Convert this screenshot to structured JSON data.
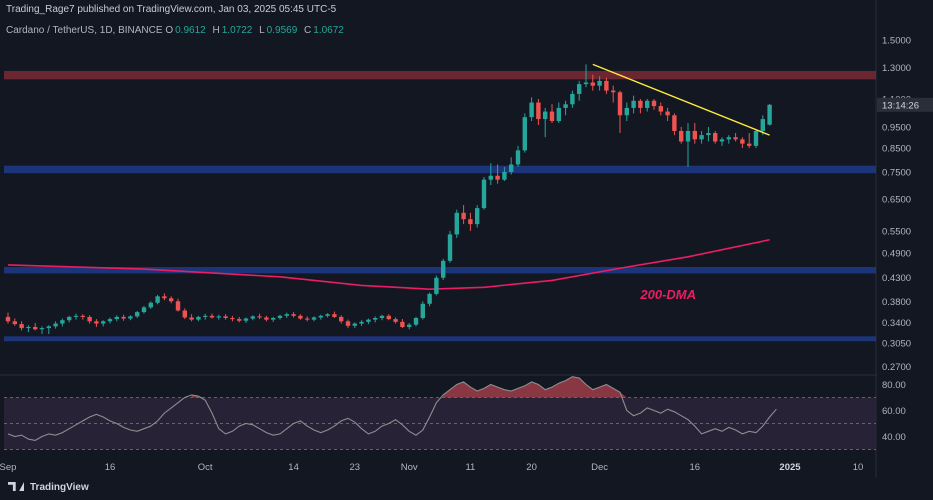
{
  "header": {
    "published_by": "Trading_Rage7 published on TradingView.com, Jan 03, 2025 05:45 UTC-5",
    "symbol": "Cardano / TetherUS, 1D, BINANCE",
    "ohlc": [
      {
        "key": "O",
        "value": "0.9612"
      },
      {
        "key": "H",
        "value": "1.0722"
      },
      {
        "key": "L",
        "value": "0.9569"
      },
      {
        "key": "C",
        "value": "1.0672"
      }
    ]
  },
  "footer": {
    "brand": "TradingView"
  },
  "colors": {
    "background": "#131722",
    "up": "#26a69a",
    "down": "#ef5350",
    "ma": "#e91e63",
    "trendline": "#ffeb3b",
    "resistance_zone": "#7a2a35",
    "support_zone": "#1e3a8a",
    "rsi_line": "#8e8e8e",
    "rsi_fill_over": "#b2434e",
    "rsi_band": "#2a2438"
  },
  "chart_data": [
    {
      "type": "candlestick",
      "title": "Cardano / TetherUS, 1D, BINANCE",
      "scale": "log",
      "y_ticks": [
        "1.5000",
        "1.3000",
        "1.1000",
        "0.9500",
        "0.8500",
        "0.7500",
        "0.6500",
        "0.5500",
        "0.4900",
        "0.4300",
        "0.3800",
        "0.3400",
        "0.3050",
        "0.2700"
      ],
      "last_price_label": "13:14:26",
      "x_ticks": [
        "Sep",
        "16",
        "Oct",
        "14",
        "23",
        "Nov",
        "11",
        "20",
        "Dec",
        "16",
        "2025",
        "10"
      ],
      "candles": [
        [
          0.35,
          0.358,
          0.338,
          0.342
        ],
        [
          0.342,
          0.347,
          0.334,
          0.337
        ],
        [
          0.337,
          0.342,
          0.326,
          0.33
        ],
        [
          0.33,
          0.335,
          0.323,
          0.332
        ],
        [
          0.332,
          0.339,
          0.326,
          0.328
        ],
        [
          0.328,
          0.333,
          0.32,
          0.33
        ],
        [
          0.33,
          0.335,
          0.32,
          0.333
        ],
        [
          0.333,
          0.342,
          0.329,
          0.338
        ],
        [
          0.338,
          0.347,
          0.333,
          0.344
        ],
        [
          0.344,
          0.352,
          0.34,
          0.35
        ],
        [
          0.35,
          0.356,
          0.345,
          0.352
        ],
        [
          0.352,
          0.355,
          0.345,
          0.35
        ],
        [
          0.35,
          0.353,
          0.338,
          0.342
        ],
        [
          0.342,
          0.346,
          0.332,
          0.338
        ],
        [
          0.338,
          0.344,
          0.333,
          0.342
        ],
        [
          0.342,
          0.349,
          0.338,
          0.346
        ],
        [
          0.346,
          0.353,
          0.342,
          0.35
        ],
        [
          0.35,
          0.354,
          0.343,
          0.347
        ],
        [
          0.347,
          0.353,
          0.344,
          0.351
        ],
        [
          0.351,
          0.361,
          0.348,
          0.359
        ],
        [
          0.359,
          0.371,
          0.356,
          0.368
        ],
        [
          0.368,
          0.38,
          0.365,
          0.377
        ],
        [
          0.377,
          0.393,
          0.374,
          0.39
        ],
        [
          0.39,
          0.396,
          0.382,
          0.386
        ],
        [
          0.386,
          0.39,
          0.376,
          0.38
        ],
        [
          0.38,
          0.385,
          0.36,
          0.362
        ],
        [
          0.362,
          0.366,
          0.346,
          0.349
        ],
        [
          0.349,
          0.355,
          0.342,
          0.345
        ],
        [
          0.345,
          0.352,
          0.342,
          0.35
        ],
        [
          0.35,
          0.356,
          0.345,
          0.352
        ],
        [
          0.352,
          0.356,
          0.347,
          0.349
        ],
        [
          0.349,
          0.354,
          0.345,
          0.351
        ],
        [
          0.351,
          0.355,
          0.345,
          0.348
        ],
        [
          0.348,
          0.352,
          0.342,
          0.346
        ],
        [
          0.346,
          0.35,
          0.34,
          0.343
        ],
        [
          0.343,
          0.349,
          0.339,
          0.347
        ],
        [
          0.347,
          0.353,
          0.344,
          0.351
        ],
        [
          0.351,
          0.356,
          0.346,
          0.349
        ],
        [
          0.349,
          0.352,
          0.342,
          0.345
        ],
        [
          0.345,
          0.35,
          0.341,
          0.348
        ],
        [
          0.348,
          0.354,
          0.345,
          0.352
        ],
        [
          0.352,
          0.358,
          0.348,
          0.355
        ],
        [
          0.355,
          0.359,
          0.349,
          0.352
        ],
        [
          0.352,
          0.355,
          0.345,
          0.347
        ],
        [
          0.347,
          0.351,
          0.342,
          0.345
        ],
        [
          0.345,
          0.351,
          0.342,
          0.349
        ],
        [
          0.349,
          0.354,
          0.345,
          0.352
        ],
        [
          0.352,
          0.357,
          0.349,
          0.355
        ],
        [
          0.355,
          0.36,
          0.348,
          0.35
        ],
        [
          0.35,
          0.353,
          0.338,
          0.342
        ],
        [
          0.342,
          0.345,
          0.33,
          0.334
        ],
        [
          0.334,
          0.34,
          0.33,
          0.338
        ],
        [
          0.338,
          0.344,
          0.334,
          0.341
        ],
        [
          0.341,
          0.347,
          0.337,
          0.345
        ],
        [
          0.345,
          0.351,
          0.34,
          0.348
        ],
        [
          0.348,
          0.354,
          0.344,
          0.352
        ],
        [
          0.352,
          0.355,
          0.344,
          0.346
        ],
        [
          0.346,
          0.349,
          0.338,
          0.341
        ],
        [
          0.341,
          0.346,
          0.33,
          0.332
        ],
        [
          0.332,
          0.339,
          0.328,
          0.336
        ],
        [
          0.336,
          0.35,
          0.333,
          0.348
        ],
        [
          0.348,
          0.38,
          0.345,
          0.375
        ],
        [
          0.375,
          0.398,
          0.37,
          0.395
        ],
        [
          0.395,
          0.435,
          0.392,
          0.43
        ],
        [
          0.43,
          0.475,
          0.425,
          0.47
        ],
        [
          0.47,
          0.55,
          0.465,
          0.54
        ],
        [
          0.54,
          0.615,
          0.53,
          0.605
        ],
        [
          0.605,
          0.63,
          0.57,
          0.585
        ],
        [
          0.585,
          0.605,
          0.55,
          0.57
        ],
        [
          0.57,
          0.63,
          0.56,
          0.62
        ],
        [
          0.62,
          0.73,
          0.615,
          0.72
        ],
        [
          0.72,
          0.785,
          0.7,
          0.735
        ],
        [
          0.735,
          0.78,
          0.705,
          0.72
        ],
        [
          0.72,
          0.77,
          0.715,
          0.75
        ],
        [
          0.75,
          0.81,
          0.74,
          0.78
        ],
        [
          0.78,
          0.86,
          0.77,
          0.84
        ],
        [
          0.84,
          1.02,
          0.83,
          1.0
        ],
        [
          1.0,
          1.11,
          0.98,
          1.08
        ],
        [
          1.08,
          1.1,
          0.96,
          0.99
        ],
        [
          0.99,
          1.05,
          0.9,
          1.03
        ],
        [
          1.03,
          1.07,
          0.97,
          0.98
        ],
        [
          0.98,
          1.08,
          0.97,
          1.05
        ],
        [
          1.05,
          1.09,
          1.01,
          1.07
        ],
        [
          1.07,
          1.15,
          1.05,
          1.13
        ],
        [
          1.13,
          1.21,
          1.09,
          1.19
        ],
        [
          1.19,
          1.32,
          1.17,
          1.2
        ],
        [
          1.2,
          1.25,
          1.15,
          1.18
        ],
        [
          1.18,
          1.24,
          1.15,
          1.21
        ],
        [
          1.21,
          1.23,
          1.13,
          1.15
        ],
        [
          1.15,
          1.18,
          1.08,
          1.14
        ],
        [
          1.14,
          1.15,
          0.92,
          1.01
        ],
        [
          1.01,
          1.08,
          0.98,
          1.05
        ],
        [
          1.05,
          1.12,
          1.02,
          1.09
        ],
        [
          1.09,
          1.1,
          1.02,
          1.05
        ],
        [
          1.05,
          1.1,
          1.03,
          1.09
        ],
        [
          1.09,
          1.1,
          1.04,
          1.06
        ],
        [
          1.06,
          1.08,
          1.01,
          1.03
        ],
        [
          1.03,
          1.05,
          0.98,
          1.01
        ],
        [
          1.01,
          1.02,
          0.91,
          0.93
        ],
        [
          0.93,
          0.95,
          0.87,
          0.88
        ],
        [
          0.88,
          0.97,
          0.77,
          0.93
        ],
        [
          0.93,
          0.97,
          0.87,
          0.89
        ],
        [
          0.89,
          0.93,
          0.87,
          0.91
        ],
        [
          0.91,
          0.95,
          0.88,
          0.92
        ],
        [
          0.92,
          0.93,
          0.87,
          0.88
        ],
        [
          0.88,
          0.9,
          0.86,
          0.89
        ],
        [
          0.89,
          0.91,
          0.87,
          0.9
        ],
        [
          0.9,
          0.92,
          0.88,
          0.89
        ],
        [
          0.89,
          0.9,
          0.85,
          0.87
        ],
        [
          0.87,
          0.92,
          0.85,
          0.86
        ],
        [
          0.86,
          0.94,
          0.85,
          0.93
        ],
        [
          0.93,
          1.01,
          0.91,
          0.99
        ],
        [
          0.9612,
          1.0722,
          0.9569,
          1.0672
        ]
      ],
      "ma_200": {
        "label": "200-DMA",
        "points": [
          [
            0,
            0.46
          ],
          [
            20,
            0.45
          ],
          [
            40,
            0.432
          ],
          [
            52,
            0.413
          ],
          [
            62,
            0.405
          ],
          [
            70,
            0.409
          ],
          [
            80,
            0.424
          ],
          [
            90,
            0.452
          ],
          [
            100,
            0.48
          ],
          [
            112,
            0.525
          ]
        ]
      },
      "trendline": {
        "points": [
          [
            86,
            1.32
          ],
          [
            112,
            0.91
          ]
        ]
      },
      "zones": [
        {
          "name": "resistance",
          "from": 1.22,
          "to": 1.275
        },
        {
          "name": "support",
          "from": 0.745,
          "to": 0.775
        },
        {
          "name": "support",
          "from": 0.44,
          "to": 0.455
        },
        {
          "name": "support",
          "from": 0.308,
          "to": 0.316
        }
      ]
    },
    {
      "type": "line",
      "title": "",
      "y_ticks": [
        "80.00",
        "60.00",
        "40.00"
      ],
      "overbought": 70,
      "midline": 50,
      "oversold": 30,
      "ylim": [
        25,
        85
      ],
      "values": [
        42,
        40,
        41,
        38,
        37,
        40,
        42,
        41,
        43,
        46,
        49,
        52,
        55,
        57,
        55,
        52,
        50,
        47,
        45,
        44,
        46,
        48,
        52,
        58,
        62,
        66,
        70,
        72,
        71,
        68,
        58,
        46,
        42,
        44,
        48,
        50,
        49,
        46,
        43,
        41,
        42,
        46,
        50,
        52,
        48,
        45,
        43,
        45,
        48,
        52,
        54,
        51,
        46,
        42,
        44,
        48,
        50,
        53,
        49,
        44,
        41,
        45,
        55,
        66,
        72,
        76,
        80,
        82,
        78,
        75,
        77,
        80,
        78,
        76,
        75,
        77,
        79,
        82,
        80,
        76,
        78,
        81,
        83,
        86,
        85,
        80,
        76,
        78,
        80,
        77,
        74,
        60,
        56,
        58,
        62,
        60,
        58,
        61,
        59,
        56,
        53,
        48,
        42,
        44,
        46,
        44,
        47,
        45,
        42,
        44,
        43,
        48,
        55,
        61
      ]
    }
  ]
}
